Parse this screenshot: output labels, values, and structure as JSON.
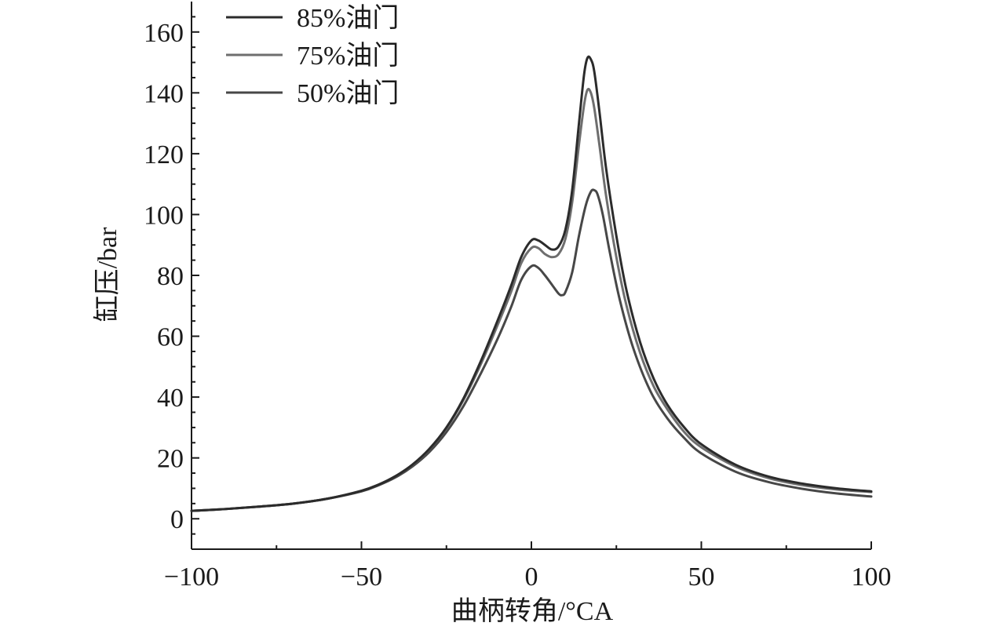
{
  "chart_data": {
    "type": "line",
    "xlabel": "曲柄转角/°CA",
    "ylabel": "缸压/bar",
    "xlim": [
      -100,
      100
    ],
    "ylim": [
      -10,
      170
    ],
    "xticks": [
      -100,
      -50,
      0,
      50,
      100
    ],
    "xtick_labels": [
      "−100",
      "−50",
      "0",
      "50",
      "100"
    ],
    "xminor": [
      -75,
      -25,
      25,
      75
    ],
    "yticks": [
      0,
      20,
      40,
      60,
      80,
      100,
      120,
      140,
      160
    ],
    "ytick_labels": [
      "0",
      "20",
      "40",
      "60",
      "80",
      "100",
      "120",
      "140",
      "160"
    ],
    "yminor_step": 5,
    "grid": false,
    "legend": "top-left",
    "series": [
      {
        "name": "85%油门",
        "color": "#2b2b2b",
        "points": [
          [
            -100,
            2.6
          ],
          [
            -90,
            3.2
          ],
          [
            -80,
            4.0
          ],
          [
            -70,
            5.0
          ],
          [
            -60,
            6.6
          ],
          [
            -50,
            9.2
          ],
          [
            -45,
            11.2
          ],
          [
            -40,
            14.0
          ],
          [
            -35,
            17.8
          ],
          [
            -30,
            23.0
          ],
          [
            -25,
            30.0
          ],
          [
            -20,
            39.5
          ],
          [
            -15,
            51.5
          ],
          [
            -10,
            65.0
          ],
          [
            -6,
            76.5
          ],
          [
            -3,
            86.0
          ],
          [
            0,
            91.5
          ],
          [
            2,
            91.5
          ],
          [
            4,
            90.0
          ],
          [
            6,
            88.5
          ],
          [
            8,
            89.5
          ],
          [
            10,
            95.0
          ],
          [
            12,
            108.0
          ],
          [
            14,
            130.0
          ],
          [
            15.5,
            146.0
          ],
          [
            16.5,
            151.5
          ],
          [
            17.5,
            151.0
          ],
          [
            18.5,
            147.0
          ],
          [
            20,
            134.0
          ],
          [
            22,
            115.0
          ],
          [
            25,
            93.0
          ],
          [
            28,
            75.0
          ],
          [
            32,
            58.0
          ],
          [
            36,
            46.0
          ],
          [
            40,
            37.5
          ],
          [
            45,
            30.0
          ],
          [
            50,
            24.5
          ],
          [
            60,
            17.8
          ],
          [
            70,
            13.8
          ],
          [
            80,
            11.5
          ],
          [
            90,
            10.0
          ],
          [
            100,
            9.0
          ]
        ]
      },
      {
        "name": "75%油门",
        "color": "#6e6e6e",
        "points": [
          [
            -100,
            2.6
          ],
          [
            -90,
            3.2
          ],
          [
            -80,
            4.0
          ],
          [
            -70,
            5.0
          ],
          [
            -60,
            6.6
          ],
          [
            -50,
            9.2
          ],
          [
            -45,
            11.2
          ],
          [
            -40,
            14.0
          ],
          [
            -35,
            17.7
          ],
          [
            -30,
            22.9
          ],
          [
            -25,
            29.8
          ],
          [
            -20,
            39.0
          ],
          [
            -15,
            50.5
          ],
          [
            -10,
            63.5
          ],
          [
            -6,
            74.5
          ],
          [
            -3,
            84.0
          ],
          [
            0,
            89.0
          ],
          [
            2,
            89.0
          ],
          [
            4,
            87.0
          ],
          [
            6,
            86.0
          ],
          [
            8,
            87.0
          ],
          [
            10,
            92.0
          ],
          [
            12,
            104.0
          ],
          [
            14,
            123.0
          ],
          [
            15.5,
            136.0
          ],
          [
            16.5,
            141.0
          ],
          [
            17.5,
            140.0
          ],
          [
            18.5,
            135.0
          ],
          [
            20,
            123.0
          ],
          [
            22,
            106.0
          ],
          [
            25,
            86.0
          ],
          [
            28,
            70.0
          ],
          [
            32,
            54.5
          ],
          [
            36,
            43.5
          ],
          [
            40,
            36.0
          ],
          [
            45,
            28.5
          ],
          [
            50,
            23.5
          ],
          [
            60,
            17.2
          ],
          [
            70,
            13.3
          ],
          [
            80,
            11.0
          ],
          [
            90,
            9.6
          ],
          [
            100,
            8.8
          ]
        ]
      },
      {
        "name": "50%油门",
        "color": "#474747",
        "points": [
          [
            -100,
            2.6
          ],
          [
            -90,
            3.2
          ],
          [
            -80,
            4.0
          ],
          [
            -70,
            5.0
          ],
          [
            -60,
            6.6
          ],
          [
            -50,
            9.0
          ],
          [
            -45,
            11.0
          ],
          [
            -40,
            13.6
          ],
          [
            -35,
            17.2
          ],
          [
            -30,
            22.0
          ],
          [
            -25,
            28.5
          ],
          [
            -20,
            37.0
          ],
          [
            -15,
            47.5
          ],
          [
            -10,
            59.0
          ],
          [
            -6,
            69.5
          ],
          [
            -3,
            78.5
          ],
          [
            0,
            83.0
          ],
          [
            2,
            82.5
          ],
          [
            4,
            80.0
          ],
          [
            6,
            77.0
          ],
          [
            8,
            74.0
          ],
          [
            9,
            73.5
          ],
          [
            10,
            74.5
          ],
          [
            12,
            81.0
          ],
          [
            14,
            93.0
          ],
          [
            16,
            103.0
          ],
          [
            17.5,
            107.5
          ],
          [
            18.5,
            108.0
          ],
          [
            19.5,
            106.5
          ],
          [
            21,
            100.0
          ],
          [
            23,
            88.0
          ],
          [
            26,
            72.0
          ],
          [
            30,
            56.0
          ],
          [
            35,
            42.0
          ],
          [
            40,
            33.0
          ],
          [
            45,
            26.5
          ],
          [
            50,
            21.5
          ],
          [
            60,
            15.5
          ],
          [
            70,
            12.0
          ],
          [
            80,
            9.8
          ],
          [
            90,
            8.3
          ],
          [
            100,
            7.3
          ]
        ]
      }
    ]
  }
}
